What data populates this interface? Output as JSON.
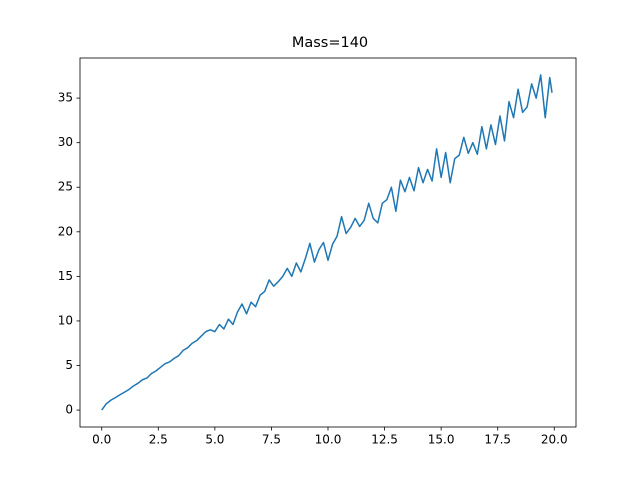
{
  "chart_data": {
    "type": "line",
    "title": "Mass=140",
    "x": [
      0,
      0.2,
      0.4,
      0.6,
      0.8,
      1.0,
      1.2,
      1.4,
      1.6,
      1.8,
      2.0,
      2.2,
      2.4,
      2.6,
      2.8,
      3.0,
      3.2,
      3.4,
      3.6,
      3.8,
      4.0,
      4.2,
      4.4,
      4.6,
      4.8,
      5.0,
      5.2,
      5.4,
      5.6,
      5.8,
      6.0,
      6.2,
      6.4,
      6.6,
      6.8,
      7.0,
      7.2,
      7.4,
      7.6,
      7.8,
      8.0,
      8.2,
      8.4,
      8.6,
      8.8,
      9.0,
      9.2,
      9.4,
      9.6,
      9.8,
      10.0,
      10.2,
      10.4,
      10.6,
      10.8,
      11.0,
      11.2,
      11.4,
      11.6,
      11.8,
      12.0,
      12.2,
      12.4,
      12.6,
      12.8,
      13.0,
      13.2,
      13.4,
      13.6,
      13.8,
      14.0,
      14.2,
      14.4,
      14.6,
      14.8,
      15.0,
      15.2,
      15.4,
      15.6,
      15.8,
      16.0,
      16.2,
      16.4,
      16.6,
      16.8,
      17.0,
      17.2,
      17.4,
      17.6,
      17.8,
      18.0,
      18.2,
      18.4,
      18.6,
      18.8,
      19.0,
      19.2,
      19.4,
      19.6,
      19.8,
      19.9
    ],
    "series": [
      {
        "color": "#1f77b4",
        "values": [
          0,
          0.7,
          1.1,
          1.4,
          1.7,
          2.0,
          2.3,
          2.7,
          3.0,
          3.4,
          3.6,
          4.1,
          4.4,
          4.8,
          5.2,
          5.4,
          5.8,
          6.1,
          6.7,
          7.0,
          7.5,
          7.8,
          8.3,
          8.8,
          9.0,
          8.8,
          9.6,
          9.1,
          10.2,
          9.6,
          11.0,
          11.9,
          10.8,
          12.1,
          11.6,
          12.9,
          13.3,
          14.6,
          13.9,
          14.4,
          15.0,
          15.9,
          15.0,
          16.5,
          15.5,
          17.0,
          18.7,
          16.6,
          18.0,
          18.8,
          16.8,
          18.6,
          19.5,
          21.7,
          19.8,
          20.5,
          21.5,
          20.6,
          21.3,
          23.2,
          21.5,
          21.0,
          23.2,
          23.6,
          25.0,
          22.3,
          25.8,
          24.5,
          26.1,
          24.6,
          27.2,
          25.5,
          27.0,
          25.7,
          29.3,
          26.1,
          28.9,
          25.5,
          28.2,
          28.6,
          30.6,
          28.8,
          30.0,
          28.7,
          31.8,
          29.3,
          32.0,
          29.8,
          33.0,
          30.2,
          34.6,
          32.8,
          36.0,
          33.4,
          34.0,
          36.6,
          35.0,
          37.6,
          32.8,
          37.3,
          35.6
        ]
      }
    ],
    "xlim": [
      -0.96,
      20.96
    ],
    "ylim": [
      -1.9,
      39.5
    ],
    "xticks": [
      {
        "value": 0,
        "label": "0.0"
      },
      {
        "value": 2.5,
        "label": "2.5"
      },
      {
        "value": 5,
        "label": "5.0"
      },
      {
        "value": 7.5,
        "label": "7.5"
      },
      {
        "value": 10,
        "label": "10.0"
      },
      {
        "value": 12.5,
        "label": "12.5"
      },
      {
        "value": 15,
        "label": "15.0"
      },
      {
        "value": 17.5,
        "label": "17.5"
      },
      {
        "value": 20,
        "label": "20.0"
      }
    ],
    "yticks": [
      0,
      5,
      10,
      15,
      20,
      25,
      30,
      35
    ]
  }
}
